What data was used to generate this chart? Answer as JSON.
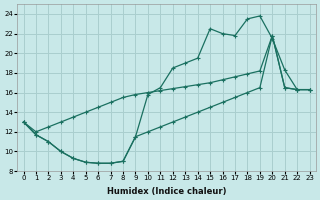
{
  "xlabel": "Humidex (Indice chaleur)",
  "bg_color": "#c8e8e8",
  "grid_color": "#aacece",
  "line_color": "#1a7060",
  "xlim": [
    -0.5,
    23.5
  ],
  "ylim": [
    8,
    25
  ],
  "xticks": [
    0,
    1,
    2,
    3,
    4,
    5,
    6,
    7,
    8,
    9,
    10,
    11,
    12,
    13,
    14,
    15,
    16,
    17,
    18,
    19,
    20,
    21,
    22,
    23
  ],
  "yticks": [
    8,
    10,
    12,
    14,
    16,
    18,
    20,
    22,
    24
  ],
  "line1_x": [
    0,
    1,
    2,
    3,
    4,
    5,
    6,
    7,
    8,
    9,
    10,
    11,
    12,
    13,
    14,
    15,
    16,
    17,
    18,
    19,
    20,
    21,
    22,
    23
  ],
  "line1_y": [
    13.0,
    11.7,
    11.0,
    10.0,
    9.3,
    8.9,
    8.8,
    8.8,
    9.0,
    11.5,
    15.8,
    16.5,
    18.5,
    19.0,
    19.5,
    22.5,
    22.0,
    21.8,
    23.5,
    23.8,
    21.5,
    18.3,
    16.3,
    16.3
  ],
  "line2_x": [
    0,
    1,
    2,
    3,
    4,
    5,
    6,
    7,
    8,
    9,
    10,
    11,
    12,
    13,
    14,
    15,
    16,
    17,
    18,
    19,
    20,
    21,
    22,
    23
  ],
  "line2_y": [
    13.0,
    12.0,
    12.5,
    13.0,
    13.5,
    14.0,
    14.5,
    15.0,
    15.5,
    15.8,
    16.0,
    16.2,
    16.4,
    16.6,
    16.8,
    17.0,
    17.3,
    17.6,
    17.9,
    18.2,
    21.8,
    16.5,
    16.3,
    16.3
  ],
  "line3_x": [
    0,
    1,
    2,
    3,
    4,
    5,
    6,
    7,
    8,
    9,
    10,
    11,
    12,
    13,
    14,
    15,
    16,
    17,
    18,
    19,
    20,
    21,
    22,
    23
  ],
  "line3_y": [
    13.0,
    11.7,
    11.0,
    10.0,
    9.3,
    8.9,
    8.8,
    8.8,
    9.0,
    11.5,
    12.0,
    12.5,
    13.0,
    13.5,
    14.0,
    14.5,
    15.0,
    15.5,
    16.0,
    16.5,
    21.8,
    16.5,
    16.3,
    16.3
  ]
}
